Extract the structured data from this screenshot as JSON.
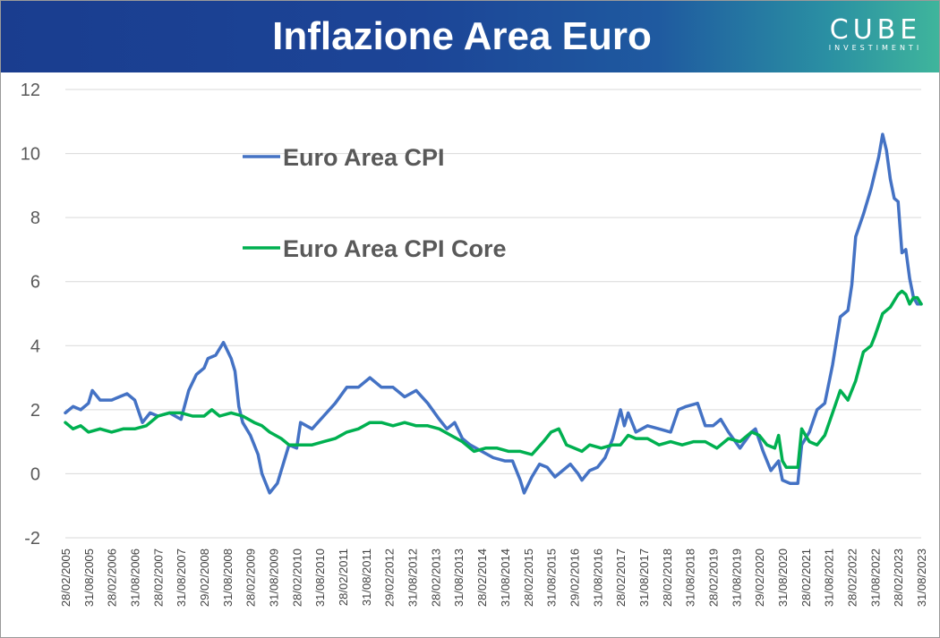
{
  "header": {
    "title": "Inflazione Area Euro",
    "logo_text": "CUBE",
    "logo_subtext": "INVESTIMENTI"
  },
  "chart_data": {
    "type": "line",
    "title": "Inflazione Area Euro",
    "xlabel": "",
    "ylabel": "",
    "ylim": [
      -2,
      12
    ],
    "yticks": [
      -2,
      0,
      2,
      4,
      6,
      8,
      10,
      12
    ],
    "grid": true,
    "legend_position": "top-left",
    "x_start": "2005-02",
    "x_end": "2023-08",
    "frequency": "monthly",
    "tick_labels": [
      "28/02/2005",
      "31/08/2005",
      "28/02/2006",
      "31/08/2006",
      "28/02/2007",
      "31/08/2007",
      "29/02/2008",
      "31/08/2008",
      "28/02/2009",
      "31/08/2009",
      "28/02/2010",
      "31/08/2010",
      "28/02/2011",
      "31/08/2011",
      "29/02/2012",
      "31/08/2012",
      "28/02/2013",
      "31/08/2013",
      "28/02/2014",
      "31/08/2014",
      "28/02/2015",
      "31/08/2015",
      "29/02/2016",
      "31/08/2016",
      "28/02/2017",
      "31/08/2017",
      "28/02/2018",
      "31/08/2018",
      "28/02/2019",
      "31/08/2019",
      "29/02/2020",
      "31/08/2020",
      "28/02/2021",
      "31/08/2021",
      "28/02/2022",
      "31/08/2022",
      "28/02/2023",
      "31/08/2023"
    ],
    "series": [
      {
        "name": "Euro Area CPI",
        "color": "#4472c4",
        "points": [
          [
            "2005-02",
            1.9
          ],
          [
            "2005-04",
            2.1
          ],
          [
            "2005-06",
            2.0
          ],
          [
            "2005-08",
            2.2
          ],
          [
            "2005-09",
            2.6
          ],
          [
            "2005-11",
            2.3
          ],
          [
            "2006-02",
            2.3
          ],
          [
            "2006-04",
            2.4
          ],
          [
            "2006-06",
            2.5
          ],
          [
            "2006-08",
            2.3
          ],
          [
            "2006-10",
            1.6
          ],
          [
            "2006-12",
            1.9
          ],
          [
            "2007-02",
            1.8
          ],
          [
            "2007-05",
            1.9
          ],
          [
            "2007-08",
            1.7
          ],
          [
            "2007-10",
            2.6
          ],
          [
            "2007-12",
            3.1
          ],
          [
            "2008-02",
            3.3
          ],
          [
            "2008-03",
            3.6
          ],
          [
            "2008-05",
            3.7
          ],
          [
            "2008-07",
            4.1
          ],
          [
            "2008-09",
            3.6
          ],
          [
            "2008-10",
            3.2
          ],
          [
            "2008-11",
            2.1
          ],
          [
            "2008-12",
            1.6
          ],
          [
            "2009-02",
            1.2
          ],
          [
            "2009-04",
            0.6
          ],
          [
            "2009-05",
            0.0
          ],
          [
            "2009-07",
            -0.6
          ],
          [
            "2009-09",
            -0.3
          ],
          [
            "2009-11",
            0.5
          ],
          [
            "2009-12",
            0.9
          ],
          [
            "2010-02",
            0.8
          ],
          [
            "2010-03",
            1.6
          ],
          [
            "2010-06",
            1.4
          ],
          [
            "2010-09",
            1.8
          ],
          [
            "2010-12",
            2.2
          ],
          [
            "2011-03",
            2.7
          ],
          [
            "2011-06",
            2.7
          ],
          [
            "2011-09",
            3.0
          ],
          [
            "2011-12",
            2.7
          ],
          [
            "2012-03",
            2.7
          ],
          [
            "2012-06",
            2.4
          ],
          [
            "2012-09",
            2.6
          ],
          [
            "2012-12",
            2.2
          ],
          [
            "2013-03",
            1.7
          ],
          [
            "2013-05",
            1.4
          ],
          [
            "2013-07",
            1.6
          ],
          [
            "2013-09",
            1.1
          ],
          [
            "2013-11",
            0.9
          ],
          [
            "2014-02",
            0.7
          ],
          [
            "2014-05",
            0.5
          ],
          [
            "2014-08",
            0.4
          ],
          [
            "2014-10",
            0.4
          ],
          [
            "2014-12",
            -0.2
          ],
          [
            "2015-01",
            -0.6
          ],
          [
            "2015-03",
            -0.1
          ],
          [
            "2015-05",
            0.3
          ],
          [
            "2015-07",
            0.2
          ],
          [
            "2015-09",
            -0.1
          ],
          [
            "2015-11",
            0.1
          ],
          [
            "2016-01",
            0.3
          ],
          [
            "2016-03",
            0.0
          ],
          [
            "2016-04",
            -0.2
          ],
          [
            "2016-06",
            0.1
          ],
          [
            "2016-08",
            0.2
          ],
          [
            "2016-10",
            0.5
          ],
          [
            "2016-12",
            1.1
          ],
          [
            "2017-02",
            2.0
          ],
          [
            "2017-03",
            1.5
          ],
          [
            "2017-04",
            1.9
          ],
          [
            "2017-06",
            1.3
          ],
          [
            "2017-09",
            1.5
          ],
          [
            "2017-12",
            1.4
          ],
          [
            "2018-03",
            1.3
          ],
          [
            "2018-05",
            2.0
          ],
          [
            "2018-07",
            2.1
          ],
          [
            "2018-10",
            2.2
          ],
          [
            "2018-12",
            1.5
          ],
          [
            "2019-02",
            1.5
          ],
          [
            "2019-04",
            1.7
          ],
          [
            "2019-06",
            1.3
          ],
          [
            "2019-09",
            0.8
          ],
          [
            "2019-12",
            1.3
          ],
          [
            "2020-01",
            1.4
          ],
          [
            "2020-03",
            0.7
          ],
          [
            "2020-05",
            0.1
          ],
          [
            "2020-07",
            0.4
          ],
          [
            "2020-08",
            -0.2
          ],
          [
            "2020-10",
            -0.3
          ],
          [
            "2020-12",
            -0.3
          ],
          [
            "2021-01",
            0.9
          ],
          [
            "2021-03",
            1.3
          ],
          [
            "2021-05",
            2.0
          ],
          [
            "2021-07",
            2.2
          ],
          [
            "2021-09",
            3.4
          ],
          [
            "2021-11",
            4.9
          ],
          [
            "2022-01",
            5.1
          ],
          [
            "2022-02",
            5.9
          ],
          [
            "2022-03",
            7.4
          ],
          [
            "2022-05",
            8.1
          ],
          [
            "2022-07",
            8.9
          ],
          [
            "2022-09",
            9.9
          ],
          [
            "2022-10",
            10.6
          ],
          [
            "2022-11",
            10.1
          ],
          [
            "2022-12",
            9.2
          ],
          [
            "2023-01",
            8.6
          ],
          [
            "2023-02",
            8.5
          ],
          [
            "2023-03",
            6.9
          ],
          [
            "2023-04",
            7.0
          ],
          [
            "2023-05",
            6.1
          ],
          [
            "2023-06",
            5.5
          ],
          [
            "2023-07",
            5.3
          ],
          [
            "2023-08",
            5.3
          ]
        ]
      },
      {
        "name": "Euro Area CPI Core",
        "color": "#00b050",
        "points": [
          [
            "2005-02",
            1.6
          ],
          [
            "2005-04",
            1.4
          ],
          [
            "2005-06",
            1.5
          ],
          [
            "2005-08",
            1.3
          ],
          [
            "2005-11",
            1.4
          ],
          [
            "2006-02",
            1.3
          ],
          [
            "2006-05",
            1.4
          ],
          [
            "2006-08",
            1.4
          ],
          [
            "2006-11",
            1.5
          ],
          [
            "2007-02",
            1.8
          ],
          [
            "2007-05",
            1.9
          ],
          [
            "2007-08",
            1.9
          ],
          [
            "2007-11",
            1.8
          ],
          [
            "2008-02",
            1.8
          ],
          [
            "2008-04",
            2.0
          ],
          [
            "2008-06",
            1.8
          ],
          [
            "2008-09",
            1.9
          ],
          [
            "2008-12",
            1.8
          ],
          [
            "2009-03",
            1.6
          ],
          [
            "2009-05",
            1.5
          ],
          [
            "2009-07",
            1.3
          ],
          [
            "2009-10",
            1.1
          ],
          [
            "2009-12",
            0.9
          ],
          [
            "2010-03",
            0.9
          ],
          [
            "2010-06",
            0.9
          ],
          [
            "2010-09",
            1.0
          ],
          [
            "2010-12",
            1.1
          ],
          [
            "2011-03",
            1.3
          ],
          [
            "2011-06",
            1.4
          ],
          [
            "2011-09",
            1.6
          ],
          [
            "2011-12",
            1.6
          ],
          [
            "2012-03",
            1.5
          ],
          [
            "2012-06",
            1.6
          ],
          [
            "2012-09",
            1.5
          ],
          [
            "2012-12",
            1.5
          ],
          [
            "2013-03",
            1.4
          ],
          [
            "2013-06",
            1.2
          ],
          [
            "2013-09",
            1.0
          ],
          [
            "2013-12",
            0.7
          ],
          [
            "2014-03",
            0.8
          ],
          [
            "2014-06",
            0.8
          ],
          [
            "2014-09",
            0.7
          ],
          [
            "2014-12",
            0.7
          ],
          [
            "2015-03",
            0.6
          ],
          [
            "2015-06",
            1.0
          ],
          [
            "2015-08",
            1.3
          ],
          [
            "2015-10",
            1.4
          ],
          [
            "2015-12",
            0.9
          ],
          [
            "2016-02",
            0.8
          ],
          [
            "2016-04",
            0.7
          ],
          [
            "2016-06",
            0.9
          ],
          [
            "2016-09",
            0.8
          ],
          [
            "2016-12",
            0.9
          ],
          [
            "2017-02",
            0.9
          ],
          [
            "2017-04",
            1.2
          ],
          [
            "2017-06",
            1.1
          ],
          [
            "2017-09",
            1.1
          ],
          [
            "2017-12",
            0.9
          ],
          [
            "2018-03",
            1.0
          ],
          [
            "2018-06",
            0.9
          ],
          [
            "2018-09",
            1.0
          ],
          [
            "2018-12",
            1.0
          ],
          [
            "2019-03",
            0.8
          ],
          [
            "2019-06",
            1.1
          ],
          [
            "2019-09",
            1.0
          ],
          [
            "2019-12",
            1.3
          ],
          [
            "2020-02",
            1.2
          ],
          [
            "2020-04",
            0.9
          ],
          [
            "2020-06",
            0.8
          ],
          [
            "2020-07",
            1.2
          ],
          [
            "2020-08",
            0.4
          ],
          [
            "2020-09",
            0.2
          ],
          [
            "2020-12",
            0.2
          ],
          [
            "2021-01",
            1.4
          ],
          [
            "2021-03",
            1.0
          ],
          [
            "2021-05",
            0.9
          ],
          [
            "2021-07",
            1.2
          ],
          [
            "2021-09",
            1.9
          ],
          [
            "2021-11",
            2.6
          ],
          [
            "2022-01",
            2.3
          ],
          [
            "2022-03",
            2.9
          ],
          [
            "2022-05",
            3.8
          ],
          [
            "2022-07",
            4.0
          ],
          [
            "2022-08",
            4.3
          ],
          [
            "2022-10",
            5.0
          ],
          [
            "2022-12",
            5.2
          ],
          [
            "2023-02",
            5.6
          ],
          [
            "2023-03",
            5.7
          ],
          [
            "2023-04",
            5.6
          ],
          [
            "2023-05",
            5.3
          ],
          [
            "2023-06",
            5.5
          ],
          [
            "2023-07",
            5.5
          ],
          [
            "2023-08",
            5.3
          ]
        ]
      }
    ]
  }
}
